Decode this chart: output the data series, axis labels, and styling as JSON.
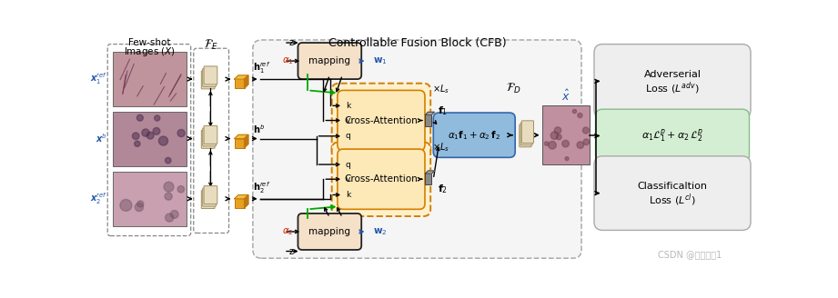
{
  "title": "Controllable Fusion Block (CFB)",
  "bg_color": "#ffffff",
  "watermark": "CSDN @小杨小杨1",
  "fe_label": "$\\mathcal{F}_E$",
  "fd_label": "$\\mathcal{F}_D$",
  "h1ref_label": "$\\mathbf{h}_1^{ref}$",
  "hb_label": "$\\mathbf{h}^{b}$",
  "h2ref_label": "$\\mathbf{h}_2^{ref}$",
  "xhat_label": "$\\hat{x}$",
  "x1ref_label": "$\\boldsymbol{x}_1^{ref}$",
  "xb_label": "$\\boldsymbol{x}^{b}$",
  "x2ref_label": "$\\boldsymbol{x}_2^{ref}$",
  "mapping_color": "#f5e0c8",
  "mapping_edge": "#222222",
  "cross_attn_fill": "#fde8b8",
  "cross_attn_edge": "#d48000",
  "fusion_box_color": "#90bbdd",
  "fusion_box_edge": "#3366aa",
  "adv_box_color": "#eeeeee",
  "adv_box_edge": "#aaaaaa",
  "cls_box_color": "#eeeeee",
  "cls_box_edge": "#aaaaaa",
  "perc_box_color": "#d4eed4",
  "perc_box_edge": "#88bb88",
  "cfb_bg": "#f5f5f5",
  "cfb_edge": "#aaaaaa",
  "green_color": "#00aa00",
  "blue_text": "#2255aa",
  "red_text": "#cc2200",
  "black": "#111111",
  "gray_box": "#999999",
  "gray_box_edge": "#555555",
  "encoder_fill": "#e8dcc0",
  "encoder_edge": "#a09060",
  "cube_front": "#e8a020",
  "cube_top": "#f0c040",
  "cube_right": "#c07810",
  "img1_color": "#c0949c",
  "img2_color": "#b08898",
  "img3_color": "#c8a0b0",
  "out_img_color": "#c090a0"
}
